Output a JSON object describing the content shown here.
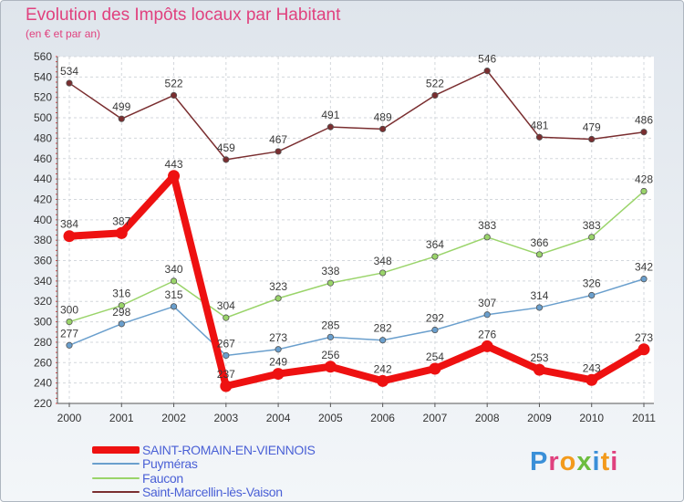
{
  "chart_data": {
    "type": "line",
    "title": "Evolution des Impôts locaux par Habitant",
    "subtitle": "(en € et par an)",
    "xlabel": "",
    "ylabel": "",
    "categories": [
      "2000",
      "2001",
      "2002",
      "2003",
      "2004",
      "2005",
      "2006",
      "2007",
      "2008",
      "2009",
      "2010",
      "2011"
    ],
    "ylim": [
      220,
      560
    ],
    "yticks": [
      220,
      240,
      260,
      280,
      300,
      320,
      340,
      360,
      380,
      400,
      420,
      440,
      460,
      480,
      500,
      520,
      540,
      560
    ],
    "grid": true,
    "legend_position": "bottom-left",
    "series": [
      {
        "name": "Saint-Marcellin-lès-Vaison",
        "color": "#7a2e30",
        "values": [
          534,
          499,
          522,
          459,
          467,
          491,
          489,
          522,
          546,
          481,
          479,
          486
        ]
      },
      {
        "name": "Faucon",
        "color": "#9ad46a",
        "values": [
          300,
          316,
          340,
          304,
          323,
          338,
          348,
          364,
          383,
          366,
          383,
          428
        ]
      },
      {
        "name": "Puyméras",
        "color": "#6a9fcd",
        "values": [
          277,
          298,
          315,
          267,
          273,
          285,
          282,
          292,
          307,
          314,
          326,
          342
        ]
      },
      {
        "name": "SAINT-ROMAIN-EN-VIENNOIS",
        "color": "#ee1111",
        "values": [
          384,
          387,
          443,
          237,
          249,
          256,
          242,
          254,
          276,
          253,
          243,
          273
        ]
      }
    ]
  },
  "legend": [
    {
      "label": "SAINT-ROMAIN-EN-VIENNOIS",
      "color": "#ee1111",
      "thickness": 8
    },
    {
      "label": "Puyméras",
      "color": "#6a9fcd",
      "thickness": 2
    },
    {
      "label": "Faucon",
      "color": "#9ad46a",
      "thickness": 2
    },
    {
      "label": "Saint-Marcellin-lès-Vaison",
      "color": "#7a2e30",
      "thickness": 2
    }
  ],
  "logo": {
    "text": "Proxiti"
  }
}
